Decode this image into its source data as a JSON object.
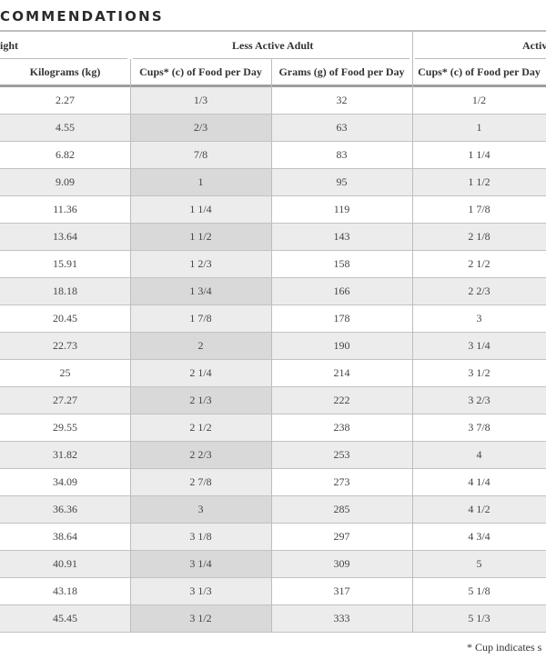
{
  "heading": "COMMENDATIONS",
  "groups": {
    "weight": "ight",
    "less_active": "Less Active Adult",
    "active": "Activ"
  },
  "columns": {
    "kilograms": "Kilograms (kg)",
    "cups_less": "Cups* (c) of Food per Day",
    "grams_less": "Grams (g) of Food per Day",
    "cups_active": "Cups* (c) of Food per Day"
  },
  "rows": [
    {
      "kg": "2.27",
      "cups_less": "1/3",
      "grams_less": "32",
      "cups_active": "1/2"
    },
    {
      "kg": "4.55",
      "cups_less": "2/3",
      "grams_less": "63",
      "cups_active": "1"
    },
    {
      "kg": "6.82",
      "cups_less": "7/8",
      "grams_less": "83",
      "cups_active": "1 1/4"
    },
    {
      "kg": "9.09",
      "cups_less": "1",
      "grams_less": "95",
      "cups_active": "1 1/2"
    },
    {
      "kg": "11.36",
      "cups_less": "1 1/4",
      "grams_less": "119",
      "cups_active": "1 7/8"
    },
    {
      "kg": "13.64",
      "cups_less": "1 1/2",
      "grams_less": "143",
      "cups_active": "2 1/8"
    },
    {
      "kg": "15.91",
      "cups_less": "1 2/3",
      "grams_less": "158",
      "cups_active": "2 1/2"
    },
    {
      "kg": "18.18",
      "cups_less": "1 3/4",
      "grams_less": "166",
      "cups_active": "2 2/3"
    },
    {
      "kg": "20.45",
      "cups_less": "1 7/8",
      "grams_less": "178",
      "cups_active": "3"
    },
    {
      "kg": "22.73",
      "cups_less": "2",
      "grams_less": "190",
      "cups_active": "3 1/4"
    },
    {
      "kg": "25",
      "cups_less": "2 1/4",
      "grams_less": "214",
      "cups_active": "3 1/2"
    },
    {
      "kg": "27.27",
      "cups_less": "2 1/3",
      "grams_less": "222",
      "cups_active": "3 2/3"
    },
    {
      "kg": "29.55",
      "cups_less": "2 1/2",
      "grams_less": "238",
      "cups_active": "3 7/8"
    },
    {
      "kg": "31.82",
      "cups_less": "2 2/3",
      "grams_less": "253",
      "cups_active": "4"
    },
    {
      "kg": "34.09",
      "cups_less": "2 7/8",
      "grams_less": "273",
      "cups_active": "4 1/4"
    },
    {
      "kg": "36.36",
      "cups_less": "3",
      "grams_less": "285",
      "cups_active": "4 1/2"
    },
    {
      "kg": "38.64",
      "cups_less": "3 1/8",
      "grams_less": "297",
      "cups_active": "4 3/4"
    },
    {
      "kg": "40.91",
      "cups_less": "3 1/4",
      "grams_less": "309",
      "cups_active": "5"
    },
    {
      "kg": "43.18",
      "cups_less": "3 1/3",
      "grams_less": "317",
      "cups_active": "5 1/8"
    },
    {
      "kg": "45.45",
      "cups_less": "3 1/2",
      "grams_less": "333",
      "cups_active": "5 1/3"
    }
  ],
  "footnote": "* Cup indicates s"
}
